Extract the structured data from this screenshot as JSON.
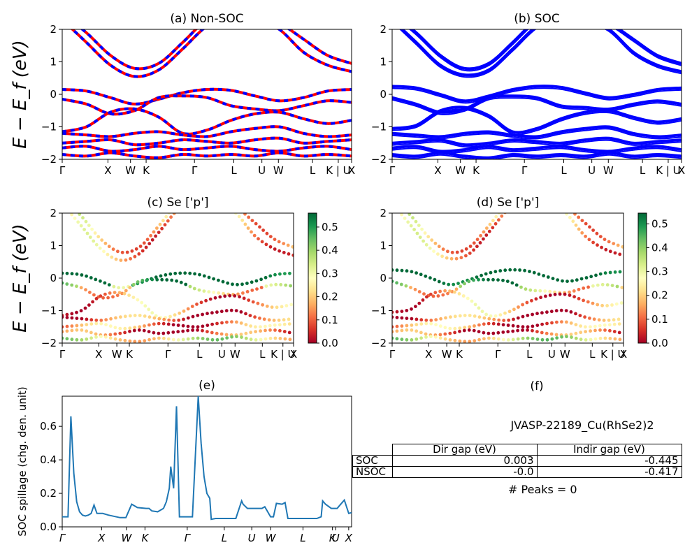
{
  "chart_data": [
    {
      "id": "a",
      "type": "line",
      "title": "(a) Non-SOC",
      "ylabel": "E − E_f (eV)",
      "ylim": [
        -2,
        2
      ],
      "yticks": [
        "2",
        "1",
        "0",
        "−1",
        "−2"
      ],
      "kpath": [
        "Γ",
        "X",
        "W",
        "K",
        "Γ",
        "L",
        "U",
        "W",
        "L",
        "K | U",
        "X"
      ],
      "kpos": [
        0,
        0.158,
        0.236,
        0.29,
        0.457,
        0.593,
        0.69,
        0.747,
        0.865,
        0.954,
        1.0
      ],
      "series_colors": [
        "#ff0000",
        "#0000ff"
      ],
      "style": "red/blue dashed (spin-up / spin-down overlapping)",
      "bands_approx": [
        [
          2.3,
          1.6,
          0.9,
          0.55,
          0.75,
          1.4,
          2.1,
          2.4,
          2.3,
          2.0,
          1.3,
          0.9,
          0.7
        ],
        [
          2.5,
          1.9,
          1.2,
          0.8,
          0.95,
          1.6,
          2.3,
          2.6,
          2.5,
          2.2,
          1.7,
          1.2,
          0.95
        ],
        [
          0.15,
          0.1,
          -0.1,
          -0.3,
          -0.15,
          0.05,
          0.15,
          0.12,
          -0.05,
          -0.2,
          -0.1,
          0.1,
          0.15
        ],
        [
          -0.15,
          -0.3,
          -0.6,
          -0.5,
          -0.1,
          -0.05,
          -0.1,
          -0.35,
          -0.45,
          -0.5,
          -0.35,
          -0.2,
          -0.25
        ],
        [
          -1.15,
          -1.0,
          -0.55,
          -0.45,
          -0.7,
          -1.2,
          -1.1,
          -0.8,
          -0.6,
          -0.55,
          -0.75,
          -0.9,
          -0.8
        ],
        [
          -1.2,
          -1.25,
          -1.3,
          -1.2,
          -1.15,
          -1.25,
          -1.3,
          -1.15,
          -1.05,
          -1.0,
          -1.2,
          -1.3,
          -1.25
        ],
        [
          -1.5,
          -1.45,
          -1.4,
          -1.55,
          -1.5,
          -1.4,
          -1.45,
          -1.5,
          -1.4,
          -1.35,
          -1.5,
          -1.45,
          -1.4
        ],
        [
          -1.65,
          -1.6,
          -1.75,
          -1.7,
          -1.6,
          -1.7,
          -1.65,
          -1.6,
          -1.7,
          -1.75,
          -1.65,
          -1.6,
          -1.7
        ],
        [
          -1.85,
          -1.9,
          -1.8,
          -1.9,
          -1.95,
          -1.85,
          -1.9,
          -1.85,
          -1.9,
          -1.8,
          -1.9,
          -1.85,
          -1.9
        ]
      ]
    },
    {
      "id": "b",
      "type": "line",
      "title": "(b) SOC",
      "ylim": [
        -2,
        2
      ],
      "yticks": [
        "2",
        "1",
        "0",
        "−1",
        "−2"
      ],
      "kpath": [
        "Γ",
        "X",
        "W",
        "K",
        "Γ",
        "L",
        "U",
        "W",
        "L",
        "K | U",
        "X"
      ],
      "kpos": [
        0,
        0.158,
        0.236,
        0.29,
        0.457,
        0.593,
        0.69,
        0.747,
        0.865,
        0.954,
        1.0
      ],
      "series_colors": [
        "#0000ff"
      ],
      "bands_approx": [
        [
          2.3,
          1.6,
          0.9,
          0.6,
          0.75,
          1.4,
          2.1,
          2.4,
          2.3,
          2.0,
          1.3,
          0.9,
          0.7
        ],
        [
          2.5,
          1.9,
          1.2,
          0.8,
          0.95,
          1.6,
          2.3,
          2.6,
          2.5,
          2.2,
          1.7,
          1.2,
          0.95
        ],
        [
          0.25,
          0.2,
          0.0,
          -0.2,
          -0.05,
          0.15,
          0.25,
          0.22,
          0.05,
          -0.1,
          0.0,
          0.15,
          0.2
        ],
        [
          -0.1,
          -0.3,
          -0.55,
          -0.45,
          -0.1,
          -0.05,
          -0.1,
          -0.35,
          -0.4,
          -0.45,
          -0.3,
          -0.2,
          -0.3
        ],
        [
          -1.05,
          -0.95,
          -0.5,
          -0.4,
          -0.65,
          -1.15,
          -1.05,
          -0.75,
          -0.55,
          -0.5,
          -0.7,
          -0.85,
          -0.75
        ],
        [
          -1.2,
          -1.25,
          -1.3,
          -1.2,
          -1.15,
          -1.25,
          -1.3,
          -1.15,
          -1.05,
          -1.0,
          -1.2,
          -1.3,
          -1.25
        ],
        [
          -1.5,
          -1.45,
          -1.4,
          -1.55,
          -1.5,
          -1.4,
          -1.45,
          -1.5,
          -1.4,
          -1.35,
          -1.5,
          -1.45,
          -1.4
        ],
        [
          -1.65,
          -1.6,
          -1.75,
          -1.7,
          -1.6,
          -1.7,
          -1.65,
          -1.6,
          -1.7,
          -1.75,
          -1.65,
          -1.6,
          -1.7
        ],
        [
          -1.85,
          -1.9,
          -1.8,
          -1.9,
          -1.95,
          -1.85,
          -1.9,
          -1.85,
          -1.9,
          -1.8,
          -1.9,
          -1.85,
          -1.9
        ]
      ]
    },
    {
      "id": "c",
      "type": "scatter",
      "title": "(c)  Se ['p']",
      "ylabel": "E − E_f (eV)",
      "ylim": [
        -2,
        2
      ],
      "yticks": [
        "2",
        "1",
        "0",
        "−1",
        "−2"
      ],
      "kpath": [
        "Γ",
        "X",
        "W",
        "K",
        "Γ",
        "L",
        "U",
        "W",
        "L",
        "K | U",
        "X"
      ],
      "kpos": [
        0,
        0.158,
        0.236,
        0.29,
        0.457,
        0.593,
        0.69,
        0.747,
        0.865,
        0.954,
        1.0
      ],
      "colormap": "RdYlGn",
      "colorbar_range": [
        0.0,
        0.56
      ],
      "colorbar_ticks": [
        "0.5",
        "0.4",
        "0.3",
        "0.2",
        "0.1",
        "0.0"
      ],
      "colorbar_tick_values": [
        0.5,
        0.4,
        0.3,
        0.2,
        0.1,
        0.0
      ],
      "band_weights": [
        0.18,
        0.22,
        0.45,
        0.25,
        0.15,
        0.08,
        0.12,
        0.05,
        0.3
      ]
    },
    {
      "id": "d",
      "type": "scatter",
      "title": "(d) Se ['p']",
      "ylim": [
        -2,
        2
      ],
      "yticks": [
        "2",
        "1",
        "0",
        "−1",
        "−2"
      ],
      "kpath": [
        "Γ",
        "X",
        "W",
        "K",
        "Γ",
        "L",
        "U",
        "W",
        "L",
        "K | U",
        "X"
      ],
      "kpos": [
        0,
        0.158,
        0.236,
        0.29,
        0.457,
        0.593,
        0.69,
        0.747,
        0.865,
        0.954,
        1.0
      ],
      "colormap": "RdYlGn",
      "colorbar_range": [
        0.0,
        0.545
      ],
      "colorbar_ticks": [
        "0.5",
        "0.4",
        "0.3",
        "0.2",
        "0.1",
        "0.0"
      ],
      "colorbar_tick_values": [
        0.5,
        0.4,
        0.3,
        0.2,
        0.1,
        0.0
      ],
      "band_weights": [
        0.18,
        0.22,
        0.45,
        0.25,
        0.15,
        0.08,
        0.12,
        0.05,
        0.3
      ]
    },
    {
      "id": "e",
      "type": "line",
      "title": "(e)",
      "ylabel": "SOC spillage (chg. den. unit)",
      "ylim": [
        0,
        0.78
      ],
      "yticks": [
        0.0,
        0.2,
        0.4,
        0.6
      ],
      "ytick_labels": [
        "0.0",
        "0.2",
        "0.4",
        "0.6"
      ],
      "kpath": [
        "Γ",
        "X",
        "W",
        "K",
        "Γ",
        "L",
        "U",
        "W",
        "L",
        "K",
        "U",
        "X"
      ],
      "kpos": [
        0,
        0.136,
        0.222,
        0.286,
        0.432,
        0.56,
        0.655,
        0.72,
        0.832,
        0.934,
        0.945,
        0.99
      ],
      "series": [
        {
          "x": [
            0,
            0.02,
            0.03,
            0.04,
            0.05,
            0.06,
            0.07,
            0.08,
            0.09,
            0.1,
            0.11,
            0.12,
            0.13,
            0.14,
            0.16,
            0.2,
            0.22,
            0.24,
            0.26,
            0.29,
            0.3,
            0.31,
            0.33,
            0.35,
            0.36,
            0.37,
            0.375,
            0.385,
            0.395,
            0.405,
            0.41,
            0.43,
            0.45,
            0.47,
            0.48,
            0.49,
            0.5,
            0.51,
            0.515,
            0.53,
            0.54,
            0.56,
            0.6,
            0.62,
            0.625,
            0.64,
            0.66,
            0.69,
            0.7,
            0.72,
            0.73,
            0.74,
            0.76,
            0.77,
            0.78,
            0.8,
            0.81,
            0.84,
            0.88,
            0.895,
            0.9,
            0.91,
            0.93,
            0.95,
            0.96,
            0.975,
            0.99,
            1.0
          ],
          "y": [
            0.06,
            0.06,
            0.66,
            0.32,
            0.15,
            0.09,
            0.07,
            0.065,
            0.07,
            0.08,
            0.13,
            0.08,
            0.08,
            0.08,
            0.07,
            0.055,
            0.055,
            0.135,
            0.115,
            0.11,
            0.11,
            0.095,
            0.09,
            0.11,
            0.15,
            0.23,
            0.36,
            0.23,
            0.72,
            0.06,
            0.06,
            0.06,
            0.06,
            0.78,
            0.5,
            0.3,
            0.2,
            0.17,
            0.045,
            0.05,
            0.05,
            0.05,
            0.05,
            0.155,
            0.135,
            0.11,
            0.11,
            0.11,
            0.12,
            0.06,
            0.06,
            0.14,
            0.135,
            0.145,
            0.05,
            0.05,
            0.05,
            0.05,
            0.05,
            0.06,
            0.155,
            0.135,
            0.11,
            0.11,
            0.13,
            0.16,
            0.08,
            0.085
          ]
        }
      ],
      "color": "#1f77b4"
    }
  ],
  "panel_f": {
    "title": "(f)",
    "name": "JVASP-22189_Cu(RhSe2)2",
    "table": {
      "headers": [
        "Dir gap (eV)",
        "Indir gap (eV)"
      ],
      "rows": [
        {
          "label": "SOC",
          "dir": "0.003",
          "indir": "-0.445"
        },
        {
          "label": "NSOC",
          "dir": "-0.0",
          "indir": "-0.417"
        }
      ]
    },
    "peaks": "# Peaks = 0"
  }
}
